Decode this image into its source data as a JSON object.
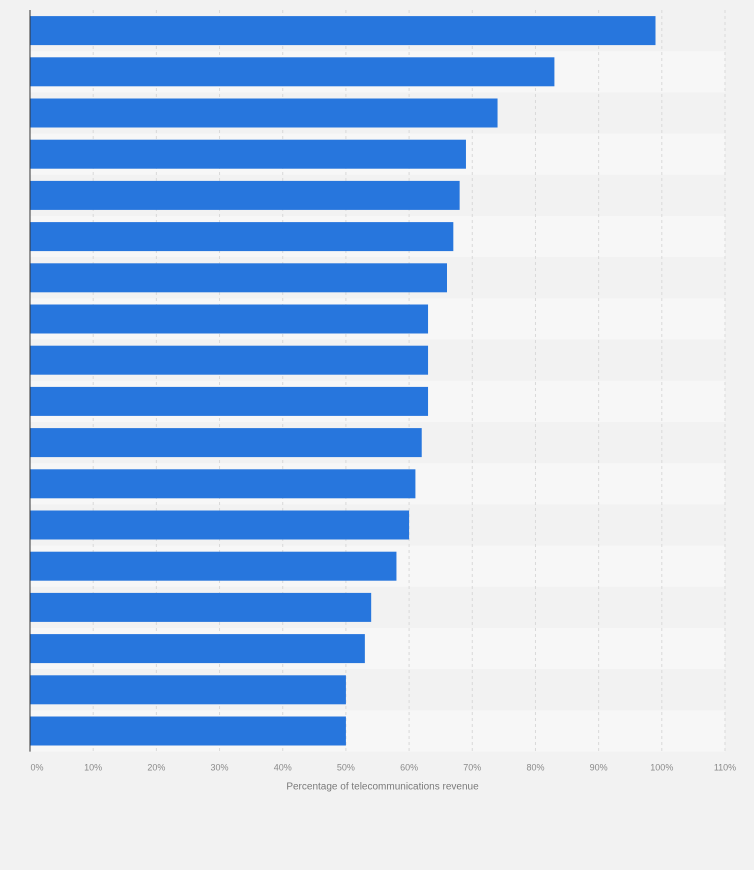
{
  "chart_data": {
    "type": "bar",
    "orientation": "horizontal",
    "title": "",
    "xlabel": "Percentage of telecommunications revenue",
    "ylabel": "",
    "categories": [
      "",
      "",
      "",
      "",
      "",
      "",
      "",
      "",
      "",
      "",
      "",
      "",
      "",
      "",
      "",
      "",
      "",
      ""
    ],
    "values": [
      99,
      83,
      74,
      69,
      68,
      67,
      66,
      63,
      63,
      63,
      62,
      61,
      60,
      58,
      54,
      53,
      50,
      50
    ],
    "xlim": [
      0,
      110
    ],
    "xticks": [
      "0%",
      "10%",
      "20%",
      "30%",
      "40%",
      "50%",
      "60%",
      "70%",
      "80%",
      "90%",
      "100%",
      "110%"
    ],
    "grid": true,
    "colors": {
      "bar": "#2776dd",
      "band_light": "#f7f7f7",
      "band_dark": "#f2f2f2",
      "grid": "#d9d9d9",
      "axis": "#333333",
      "background": "#f2f2f2"
    }
  }
}
